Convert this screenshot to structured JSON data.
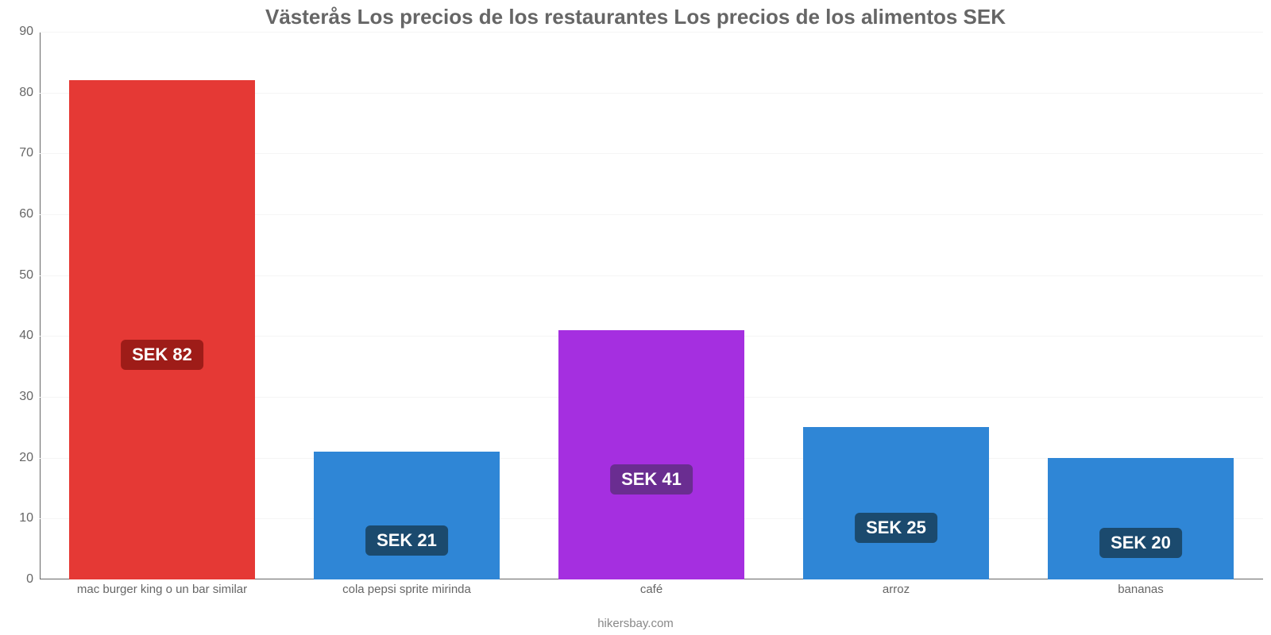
{
  "chart": {
    "type": "bar",
    "title": "Västerås Los precios de los restaurantes Los precios de los alimentos SEK",
    "title_color": "#666666",
    "title_fontsize": 26,
    "categories": [
      "mac burger king o un bar similar",
      "cola pepsi sprite mirinda",
      "café",
      "arroz",
      "bananas"
    ],
    "values": [
      82,
      21,
      41,
      25,
      20
    ],
    "value_prefix": "SEK ",
    "bar_colors": [
      "#e53935",
      "#2f86d6",
      "#a52fe0",
      "#2f86d6",
      "#2f86d6"
    ],
    "badge_bg_colors": [
      "#9e1c18",
      "#1b4a6e",
      "#6a2d91",
      "#1b4a6e",
      "#1b4a6e"
    ],
    "badge_text_color": "#ffffff",
    "badge_fontsize": 22,
    "ylim": [
      0,
      90
    ],
    "yticks": [
      0,
      10,
      20,
      30,
      40,
      50,
      60,
      70,
      80,
      90
    ],
    "grid_color": "#f5f5f5",
    "axis_color": "#666666",
    "background_color": "#ffffff",
    "label_color": "#666666",
    "label_fontsize": 15,
    "bar_width_ratio": 0.76,
    "credit": "hikersbay.com",
    "credit_color": "#888888"
  }
}
